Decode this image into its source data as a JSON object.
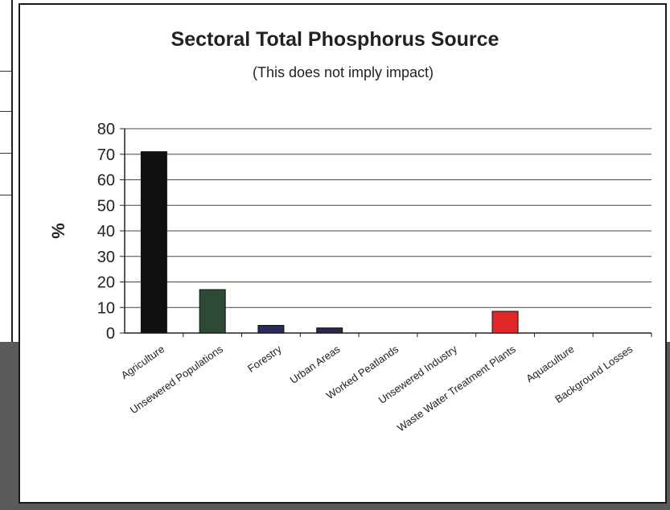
{
  "chart_data": {
    "type": "bar",
    "title": "Sectoral Total Phosphorus Source",
    "subtitle": "(This does not imply impact)",
    "xlabel": "",
    "ylabel": "%",
    "ylim": [
      0,
      80
    ],
    "yticks": [
      0,
      10,
      20,
      30,
      40,
      50,
      60,
      70,
      80
    ],
    "grid": true,
    "categories": [
      "Agriculture",
      "Unsewered Populations",
      "Forestry",
      "Urban Areas",
      "Worked Peatlands",
      "Unsewered Industry",
      "Waste Water Treatment Plants",
      "Aquaculture",
      "Background Losses"
    ],
    "values": [
      71,
      17,
      3,
      2,
      0,
      0,
      8.5,
      0,
      0
    ],
    "bar_colors": [
      "#111111",
      "#2f4a34",
      "#2a2a5a",
      "#2a2a4a",
      "#555555",
      "#555555",
      "#e02828",
      "#555555",
      "#555555"
    ]
  }
}
